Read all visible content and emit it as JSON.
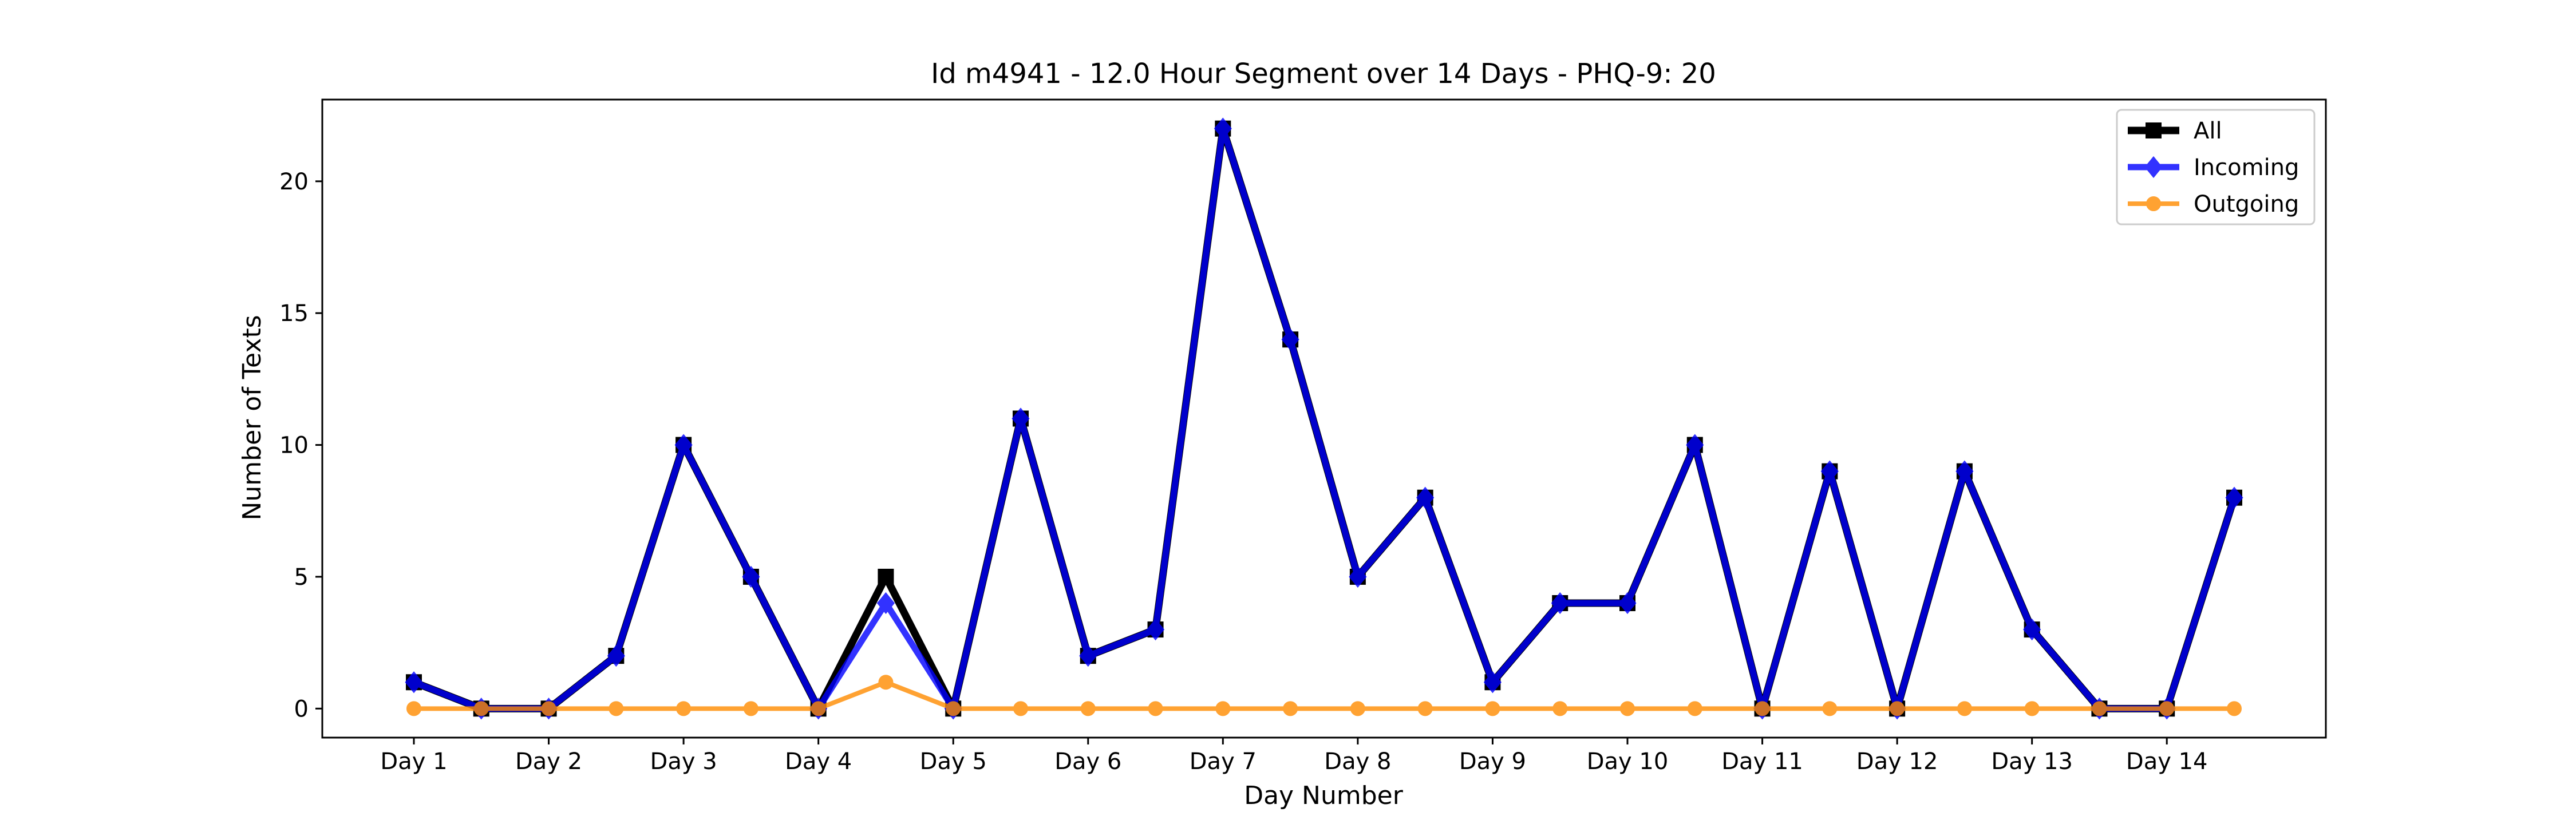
{
  "chart_data": {
    "type": "line",
    "title": "Id m4941 - 12.0 Hour Segment over 14 Days - PHQ-9: 20",
    "xlabel": "Day Number",
    "ylabel": "Number of Texts",
    "x_tick_labels": [
      "Day 1",
      "Day 2",
      "Day 3",
      "Day 4",
      "Day 5",
      "Day 6",
      "Day 7",
      "Day 8",
      "Day 9",
      "Day 10",
      "Day 11",
      "Day 12",
      "Day 13",
      "Day 14"
    ],
    "y_ticks": [
      0,
      5,
      10,
      15,
      20
    ],
    "ylim": [
      -1.1,
      23.1
    ],
    "grid": false,
    "legend_position": "top-right",
    "series": [
      {
        "name": "All",
        "color": "#000000",
        "marker": "square",
        "values": [
          1,
          0,
          0,
          2,
          10,
          5,
          0,
          5,
          0,
          11,
          2,
          3,
          22,
          14,
          5,
          8,
          1,
          4,
          4,
          10,
          0,
          9,
          0,
          9,
          3,
          0,
          0,
          8
        ]
      },
      {
        "name": "Incoming",
        "color": "#0000ff",
        "marker": "diamond",
        "values": [
          1,
          0,
          0,
          2,
          10,
          5,
          0,
          4,
          0,
          11,
          2,
          3,
          22,
          14,
          5,
          8,
          1,
          4,
          4,
          10,
          0,
          9,
          0,
          9,
          3,
          0,
          0,
          8
        ]
      },
      {
        "name": "Outgoing",
        "color": "#ff8c00",
        "marker": "circle",
        "values": [
          0,
          0,
          0,
          0,
          0,
          0,
          0,
          1,
          0,
          0,
          0,
          0,
          0,
          0,
          0,
          0,
          0,
          0,
          0,
          0,
          0,
          0,
          0,
          0,
          0,
          0,
          0,
          0
        ]
      }
    ]
  }
}
